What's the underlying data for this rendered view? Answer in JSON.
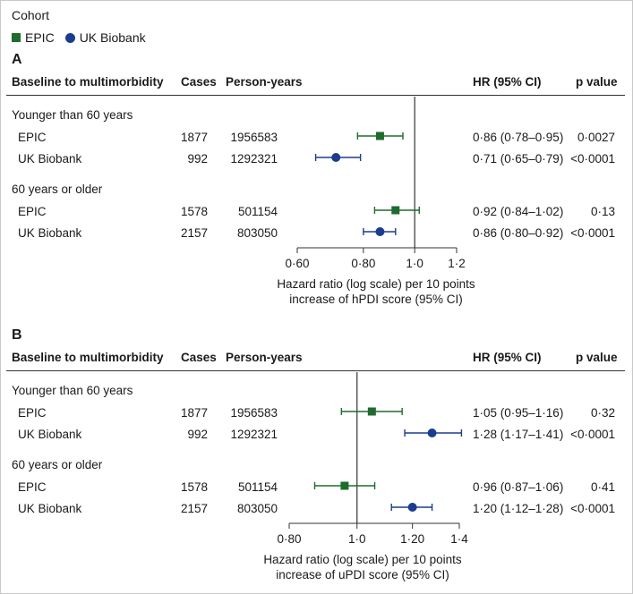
{
  "legend": {
    "title": "Cohort",
    "items": [
      {
        "label": "EPIC",
        "color": "#1e6b2e",
        "shape": "square"
      },
      {
        "label": "UK Biobank",
        "color": "#1a3d8f",
        "shape": "circle"
      }
    ]
  },
  "columns": {
    "outcome": "Baseline to multimorbidity",
    "cases": "Cases",
    "py": "Person-years",
    "hr": "HR (95% CI)",
    "p": "p value"
  },
  "chart_data": [
    {
      "type": "forest",
      "panel": "A",
      "scale": "log",
      "xlim": [
        0.6,
        1.2
      ],
      "ref": 1.0,
      "ticks": [
        {
          "v": 0.6,
          "label": "0·60"
        },
        {
          "v": 0.8,
          "label": "0·80"
        },
        {
          "v": 1.0,
          "label": "1·0"
        },
        {
          "v": 1.2,
          "label": "1·2"
        }
      ],
      "xlabel_line1": "Hazard ratio (log scale) per 10 points",
      "xlabel_line2": "increase of hPDI score (95% CI)",
      "groups": [
        {
          "label": "Younger than 60 years",
          "rows": [
            {
              "cohort": "EPIC",
              "cases": "1877",
              "py": "1956583",
              "hr": 0.86,
              "lo": 0.78,
              "hi": 0.95,
              "hr_text": "0·86 (0·78–0·95)",
              "p": "0·0027"
            },
            {
              "cohort": "UK Biobank",
              "cases": "992",
              "py": "1292321",
              "hr": 0.71,
              "lo": 0.65,
              "hi": 0.79,
              "hr_text": "0·71 (0·65–0·79)",
              "p": "<0·0001"
            }
          ]
        },
        {
          "label": "60 years or older",
          "rows": [
            {
              "cohort": "EPIC",
              "cases": "1578",
              "py": "501154",
              "hr": 0.92,
              "lo": 0.84,
              "hi": 1.02,
              "hr_text": "0·92 (0·84–1·02)",
              "p": "0·13"
            },
            {
              "cohort": "UK Biobank",
              "cases": "2157",
              "py": "803050",
              "hr": 0.86,
              "lo": 0.8,
              "hi": 0.92,
              "hr_text": "0·86 (0·80–0·92)",
              "p": "<0·0001"
            }
          ]
        }
      ]
    },
    {
      "type": "forest",
      "panel": "B",
      "scale": "log",
      "xlim": [
        0.8,
        1.4
      ],
      "ref": 1.0,
      "ticks": [
        {
          "v": 0.8,
          "label": "0·80"
        },
        {
          "v": 1.0,
          "label": "1·0"
        },
        {
          "v": 1.2,
          "label": "1·20"
        },
        {
          "v": 1.4,
          "label": "1·4"
        }
      ],
      "xlabel_line1": "Hazard ratio (log scale) per 10 points",
      "xlabel_line2": "increase of uPDI score (95% CI)",
      "groups": [
        {
          "label": "Younger than 60 years",
          "rows": [
            {
              "cohort": "EPIC",
              "cases": "1877",
              "py": "1956583",
              "hr": 1.05,
              "lo": 0.95,
              "hi": 1.16,
              "hr_text": "1·05 (0·95–1·16)",
              "p": "0·32"
            },
            {
              "cohort": "UK Biobank",
              "cases": "992",
              "py": "1292321",
              "hr": 1.28,
              "lo": 1.17,
              "hi": 1.41,
              "hr_text": "1·28 (1·17–1·41)",
              "p": "<0·0001"
            }
          ]
        },
        {
          "label": "60 years or older",
          "rows": [
            {
              "cohort": "EPIC",
              "cases": "1578",
              "py": "501154",
              "hr": 0.96,
              "lo": 0.87,
              "hi": 1.06,
              "hr_text": "0·96 (0·87–1·06)",
              "p": "0·41"
            },
            {
              "cohort": "UK Biobank",
              "cases": "2157",
              "py": "803050",
              "hr": 1.2,
              "lo": 1.12,
              "hi": 1.28,
              "hr_text": "1·20 (1·12–1·28)",
              "p": "<0·0001"
            }
          ]
        }
      ]
    }
  ]
}
